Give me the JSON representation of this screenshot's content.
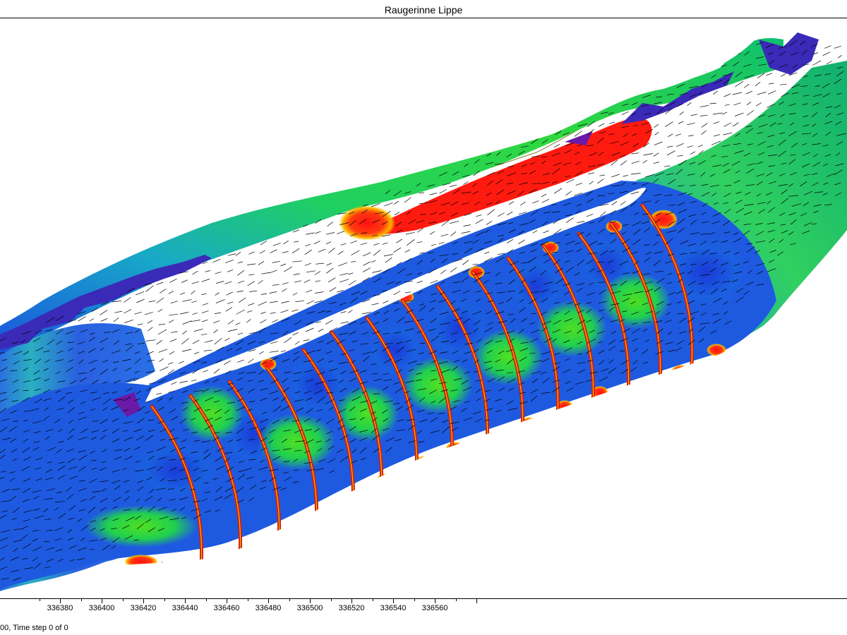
{
  "window": {
    "title": "Raugerinne Lippe"
  },
  "x_axis": {
    "tick_labels": [
      "336380",
      "336400",
      "336420",
      "336440",
      "336460",
      "336480",
      "336500",
      "336520",
      "336540",
      "336560"
    ]
  },
  "status_bar": {
    "text": "00, Time step 0 of 0"
  },
  "colors": {
    "low": "#1a40d8",
    "mid": "#00c850",
    "high": "#ff1010",
    "extreme": "#7a1aa8",
    "contour": "#8a7a2a",
    "vector": "#000000"
  }
}
